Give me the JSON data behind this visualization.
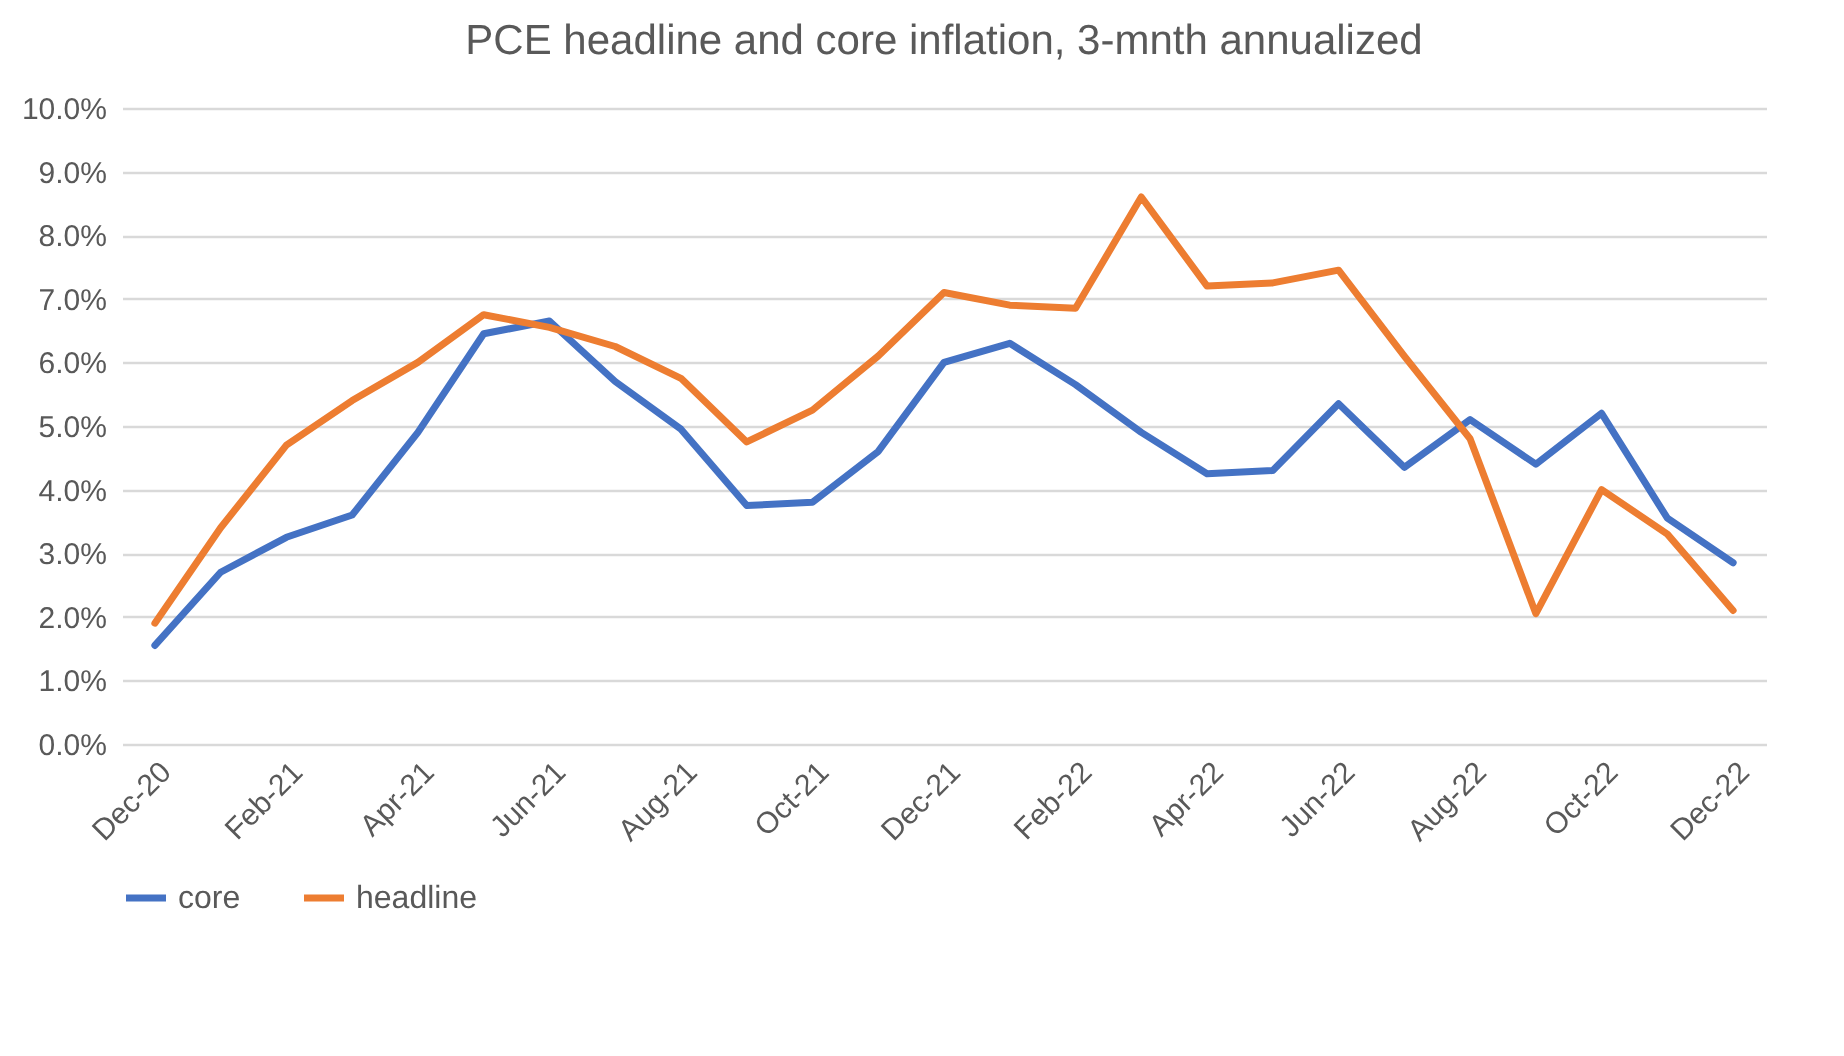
{
  "chart_data": {
    "type": "line",
    "title": "PCE headline and core inflation, 3-mnth annualized",
    "categories": [
      "Dec-20",
      null,
      "Feb-21",
      null,
      "Apr-21",
      null,
      "Jun-21",
      null,
      "Aug-21",
      null,
      "Oct-21",
      null,
      "Dec-21",
      null,
      "Feb-22",
      null,
      "Apr-22",
      null,
      "Jun-22",
      null,
      "Aug-22",
      null,
      "Oct-22",
      null,
      "Dec-22"
    ],
    "series": [
      {
        "name": "core",
        "color": "#4472c4",
        "values": [
          1.55,
          2.7,
          3.25,
          3.6,
          4.9,
          6.45,
          6.65,
          5.7,
          4.95,
          3.75,
          3.8,
          4.6,
          6.0,
          6.3,
          5.65,
          4.9,
          4.25,
          4.3,
          5.35,
          4.35,
          5.1,
          4.4,
          5.2,
          3.55,
          2.85
        ]
      },
      {
        "name": "headline",
        "color": "#ed7d31",
        "values": [
          1.9,
          3.4,
          4.7,
          5.4,
          6.0,
          6.75,
          6.55,
          6.25,
          5.75,
          4.75,
          5.25,
          6.1,
          7.1,
          6.9,
          6.85,
          8.6,
          7.2,
          7.25,
          7.45,
          6.1,
          4.8,
          2.05,
          4.0,
          3.3,
          2.1
        ]
      }
    ],
    "ylim": [
      0,
      10
    ],
    "yticks": [
      {
        "value": 0,
        "label": "0.0%"
      },
      {
        "value": 1,
        "label": "1.0%"
      },
      {
        "value": 2,
        "label": "2.0%"
      },
      {
        "value": 3,
        "label": "3.0%"
      },
      {
        "value": 4,
        "label": "4.0%"
      },
      {
        "value": 5,
        "label": "5.0%"
      },
      {
        "value": 6,
        "label": "6.0%"
      },
      {
        "value": 7,
        "label": "7.0%"
      },
      {
        "value": 8,
        "label": "8.0%"
      },
      {
        "value": 9,
        "label": "9.0%"
      },
      {
        "value": 10,
        "label": "10.0%"
      }
    ],
    "grid": "y",
    "legend": "bottom",
    "marker": "none",
    "line_style": "solid"
  }
}
